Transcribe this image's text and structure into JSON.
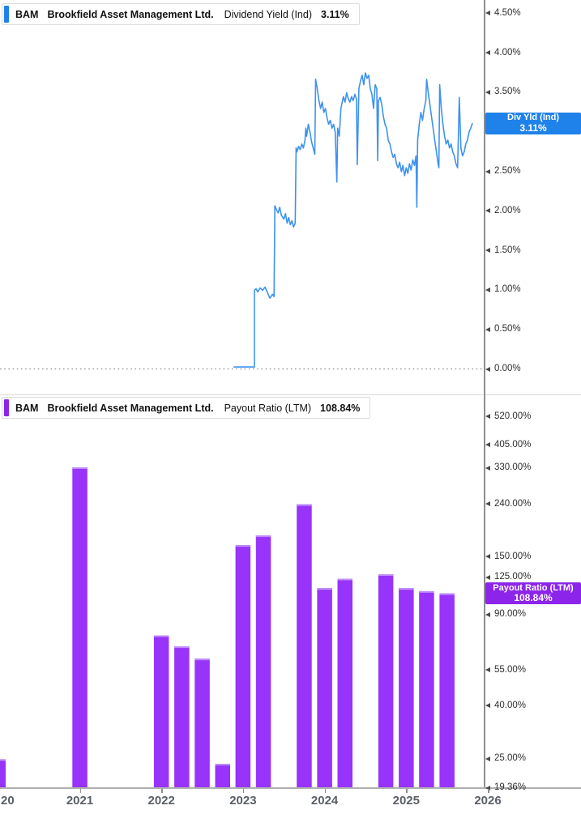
{
  "colors": {
    "dividend_line": "#3d92f0",
    "dividend_accent": "#1e82ea",
    "dividend_badge_bg": "#1e82ea",
    "payout_bar": "#9833fa",
    "payout_bar_cap": "#bd8bf7",
    "payout_accent": "#8c25e9",
    "payout_badge_bg": "#8c25e9",
    "zero_line": "#8c8c8c",
    "y_axis_line": "#8f8f8f",
    "x_axis_line": "#b0b0b0"
  },
  "dividend_panel": {
    "header": {
      "ticker": "BAM",
      "company": "Brookfield Asset Management Ltd.",
      "metric": "Dividend Yield (Ind)",
      "value": "3.11%"
    },
    "badge": {
      "label": "Div Yld (Ind)",
      "value": "3.11%"
    },
    "badge_value": 3.11,
    "y_ticks": [
      {
        "value": 4.5,
        "label": "4.50%"
      },
      {
        "value": 4.0,
        "label": "4.00%"
      },
      {
        "value": 3.5,
        "label": "3.50%"
      },
      {
        "value": 3.0,
        "label": "3.00%"
      },
      {
        "value": 2.5,
        "label": "2.50%"
      },
      {
        "value": 2.0,
        "label": "2.00%"
      },
      {
        "value": 1.5,
        "label": "1.50%"
      },
      {
        "value": 1.0,
        "label": "1.00%"
      },
      {
        "value": 0.5,
        "label": "0.50%"
      },
      {
        "value": 0.0,
        "label": "0.00%"
      }
    ]
  },
  "payout_panel": {
    "header": {
      "ticker": "BAM",
      "company": "Brookfield Asset Management Ltd.",
      "metric": "Payout Ratio (LTM)",
      "value": "108.84%"
    },
    "badge": {
      "label": "Payout Ratio (LTM)",
      "value": "108.84%"
    },
    "badge_value": 108.84,
    "y_ticks": [
      {
        "value": 520,
        "label": "520.00%"
      },
      {
        "value": 405,
        "label": "405.00%"
      },
      {
        "value": 330,
        "label": "330.00%"
      },
      {
        "value": 240,
        "label": "240.00%"
      },
      {
        "value": 150,
        "label": "150.00%"
      },
      {
        "value": 125,
        "label": "125.00%"
      },
      {
        "value": 90,
        "label": "90.00%"
      },
      {
        "value": 55,
        "label": "55.00%"
      },
      {
        "value": 40,
        "label": "40.00%"
      },
      {
        "value": 25,
        "label": "25.00%"
      },
      {
        "value": 19.36,
        "label": "19.36%"
      }
    ]
  },
  "x_axis": {
    "ticks": [
      {
        "year": 2020,
        "label": "20",
        "clipped": true
      },
      {
        "year": 2021,
        "label": "2021"
      },
      {
        "year": 2022,
        "label": "2022"
      },
      {
        "year": 2023,
        "label": "2023"
      },
      {
        "year": 2024,
        "label": "2024"
      },
      {
        "year": 2025,
        "label": "2025"
      },
      {
        "year": 2026,
        "label": "2026"
      }
    ]
  },
  "chart_data": [
    {
      "type": "line",
      "name": "BAM Dividend Yield (Ind)",
      "unit": "%",
      "current_value": 3.11,
      "ylim": [
        0,
        4.67
      ],
      "x_range_years": [
        2020,
        2026
      ],
      "y_scale": "linear",
      "grid": "zero-dotted-line-only",
      "legend_position": "right-axis-flag",
      "points": [
        [
          2022.89,
          0.03
        ],
        [
          2023.14,
          0.03
        ],
        [
          2023.14,
          1.0
        ],
        [
          2023.16,
          1.02
        ],
        [
          2023.18,
          0.98
        ],
        [
          2023.21,
          1.03
        ],
        [
          2023.24,
          1.0
        ],
        [
          2023.27,
          1.04
        ],
        [
          2023.3,
          0.97
        ],
        [
          2023.33,
          0.9
        ],
        [
          2023.36,
          0.95
        ],
        [
          2023.38,
          0.92
        ],
        [
          2023.39,
          2.07
        ],
        [
          2023.41,
          2.02
        ],
        [
          2023.43,
          1.98
        ],
        [
          2023.45,
          2.05
        ],
        [
          2023.47,
          1.95
        ],
        [
          2023.5,
          1.9
        ],
        [
          2023.52,
          1.97
        ],
        [
          2023.54,
          1.85
        ],
        [
          2023.56,
          1.92
        ],
        [
          2023.58,
          1.83
        ],
        [
          2023.6,
          1.88
        ],
        [
          2023.62,
          1.8
        ],
        [
          2023.64,
          1.85
        ],
        [
          2023.65,
          2.8
        ],
        [
          2023.66,
          2.75
        ],
        [
          2023.68,
          2.82
        ],
        [
          2023.7,
          2.78
        ],
        [
          2023.72,
          2.85
        ],
        [
          2023.74,
          2.8
        ],
        [
          2023.76,
          2.9
        ],
        [
          2023.77,
          3.05
        ],
        [
          2023.78,
          2.95
        ],
        [
          2023.8,
          3.1
        ],
        [
          2023.82,
          3.0
        ],
        [
          2023.84,
          2.88
        ],
        [
          2023.86,
          2.8
        ],
        [
          2023.88,
          2.72
        ],
        [
          2023.89,
          3.67
        ],
        [
          2023.91,
          3.55
        ],
        [
          2023.93,
          3.4
        ],
        [
          2023.95,
          3.3
        ],
        [
          2023.97,
          3.38
        ],
        [
          2023.99,
          3.25
        ],
        [
          2024.01,
          3.3
        ],
        [
          2024.03,
          3.18
        ],
        [
          2024.05,
          3.1
        ],
        [
          2024.07,
          3.15
        ],
        [
          2024.09,
          3.05
        ],
        [
          2024.11,
          3.1
        ],
        [
          2024.13,
          3.0
        ],
        [
          2024.15,
          2.37
        ],
        [
          2024.16,
          3.05
        ],
        [
          2024.18,
          2.95
        ],
        [
          2024.2,
          3.3
        ],
        [
          2024.21,
          3.35
        ],
        [
          2024.23,
          3.45
        ],
        [
          2024.25,
          3.38
        ],
        [
          2024.27,
          3.5
        ],
        [
          2024.29,
          3.42
        ],
        [
          2024.31,
          3.38
        ],
        [
          2024.33,
          3.45
        ],
        [
          2024.35,
          3.4
        ],
        [
          2024.37,
          3.48
        ],
        [
          2024.39,
          3.42
        ],
        [
          2024.4,
          2.59
        ],
        [
          2024.42,
          3.55
        ],
        [
          2024.44,
          3.65
        ],
        [
          2024.46,
          3.72
        ],
        [
          2024.48,
          3.6
        ],
        [
          2024.5,
          3.75
        ],
        [
          2024.52,
          3.68
        ],
        [
          2024.54,
          3.72
        ],
        [
          2024.56,
          3.55
        ],
        [
          2024.58,
          3.48
        ],
        [
          2024.6,
          3.3
        ],
        [
          2024.62,
          3.6
        ],
        [
          2024.64,
          3.55
        ],
        [
          2024.65,
          2.64
        ],
        [
          2024.66,
          3.4
        ],
        [
          2024.68,
          3.44
        ],
        [
          2024.7,
          3.35
        ],
        [
          2024.72,
          3.2
        ],
        [
          2024.74,
          3.1
        ],
        [
          2024.76,
          3.05
        ],
        [
          2024.78,
          2.9
        ],
        [
          2024.8,
          2.85
        ],
        [
          2024.82,
          2.75
        ],
        [
          2024.84,
          2.68
        ],
        [
          2024.86,
          2.72
        ],
        [
          2024.88,
          2.6
        ],
        [
          2024.9,
          2.55
        ],
        [
          2024.92,
          2.62
        ],
        [
          2024.94,
          2.5
        ],
        [
          2024.96,
          2.58
        ],
        [
          2024.98,
          2.45
        ],
        [
          2025.0,
          2.55
        ],
        [
          2025.02,
          2.48
        ],
        [
          2025.04,
          2.6
        ],
        [
          2025.06,
          2.52
        ],
        [
          2025.08,
          2.65
        ],
        [
          2025.1,
          2.58
        ],
        [
          2025.12,
          2.7
        ],
        [
          2025.13,
          2.05
        ],
        [
          2025.14,
          2.9
        ],
        [
          2025.16,
          3.1
        ],
        [
          2025.18,
          3.25
        ],
        [
          2025.2,
          3.15
        ],
        [
          2025.22,
          3.3
        ],
        [
          2025.24,
          3.4
        ],
        [
          2025.25,
          3.67
        ],
        [
          2025.27,
          3.5
        ],
        [
          2025.29,
          3.35
        ],
        [
          2025.31,
          3.2
        ],
        [
          2025.33,
          3.05
        ],
        [
          2025.35,
          2.9
        ],
        [
          2025.37,
          2.75
        ],
        [
          2025.39,
          2.6
        ],
        [
          2025.4,
          2.55
        ],
        [
          2025.41,
          3.6
        ],
        [
          2025.43,
          3.3
        ],
        [
          2025.45,
          3.1
        ],
        [
          2025.47,
          2.95
        ],
        [
          2025.49,
          2.85
        ],
        [
          2025.51,
          2.9
        ],
        [
          2025.53,
          2.8
        ],
        [
          2025.55,
          2.85
        ],
        [
          2025.57,
          2.75
        ],
        [
          2025.59,
          2.7
        ],
        [
          2025.61,
          2.6
        ],
        [
          2025.63,
          2.55
        ],
        [
          2025.65,
          3.44
        ],
        [
          2025.67,
          2.8
        ],
        [
          2025.69,
          2.7
        ],
        [
          2025.71,
          2.75
        ],
        [
          2025.73,
          2.85
        ],
        [
          2025.75,
          2.9
        ],
        [
          2025.77,
          3.0
        ],
        [
          2025.79,
          3.05
        ],
        [
          2025.81,
          3.11
        ]
      ]
    },
    {
      "type": "bar",
      "name": "BAM Payout Ratio (LTM)",
      "unit": "%",
      "current_value": 108.84,
      "y_scale": "log",
      "ylim": [
        19.36,
        560
      ],
      "x_range_years": [
        2020,
        2026
      ],
      "legend_position": "right-axis-flag",
      "categories": [
        2020.0,
        2021.0,
        2022.0,
        2022.25,
        2022.5,
        2022.75,
        2023.0,
        2023.25,
        2023.75,
        2024.0,
        2024.25,
        2024.75,
        2025.0,
        2025.25,
        2025.5
      ],
      "values": [
        25,
        333,
        75,
        68,
        61,
        24,
        167,
        182,
        240,
        114,
        124,
        129,
        114,
        111,
        108.84
      ]
    }
  ]
}
